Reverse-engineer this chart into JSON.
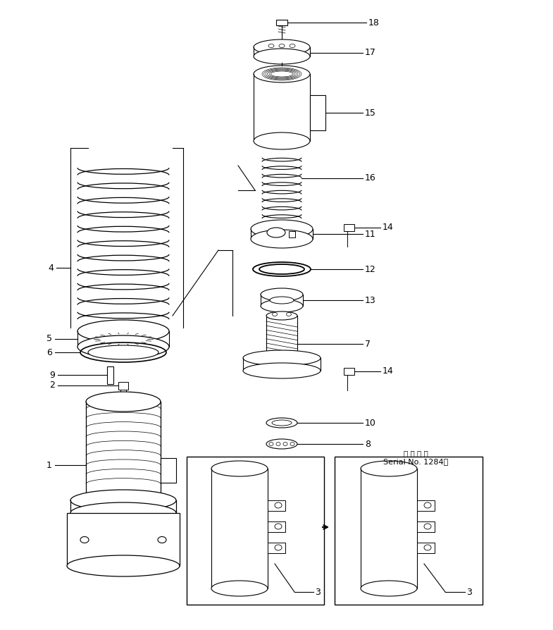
{
  "bg_color": "#ffffff",
  "fig_width": 7.85,
  "fig_height": 8.94,
  "dpi": 100,
  "serial_text_1": "适 用 号 机",
  "serial_text_2": "Serial No. 1284～"
}
